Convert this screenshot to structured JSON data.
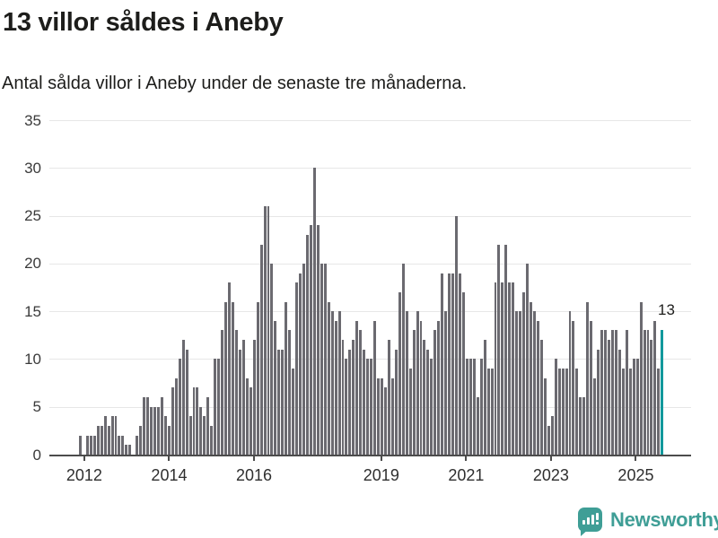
{
  "header": {
    "title": "13 villor såldes i Aneby",
    "subtitle": "Antal sålda villor i Aneby under de senaste tre månaderna."
  },
  "chart_data": {
    "type": "bar",
    "title": "13 villor såldes i Aneby",
    "subtitle": "Antal sålda villor i Aneby under de senaste tre månaderna.",
    "xlabel": "",
    "ylabel": "",
    "ylim": [
      0,
      35
    ],
    "yticks": [
      0,
      5,
      10,
      15,
      20,
      25,
      30,
      35
    ],
    "grid": true,
    "legend": "none",
    "x_start": "2011-12",
    "x_end": "2025-08",
    "x_unit": "month",
    "values": [
      2,
      0,
      2,
      2,
      2,
      3,
      3,
      4,
      3,
      4,
      4,
      2,
      2,
      1,
      1,
      0,
      2,
      3,
      6,
      6,
      5,
      5,
      5,
      6,
      4,
      3,
      7,
      8,
      10,
      12,
      11,
      4,
      7,
      7,
      5,
      4,
      6,
      3,
      10,
      10,
      13,
      16,
      18,
      16,
      13,
      11,
      12,
      8,
      7,
      12,
      16,
      22,
      26,
      26,
      20,
      14,
      11,
      11,
      16,
      13,
      9,
      18,
      19,
      20,
      23,
      24,
      30,
      24,
      20,
      20,
      16,
      15,
      14,
      15,
      12,
      10,
      11,
      12,
      14,
      13,
      11,
      10,
      10,
      14,
      8,
      8,
      7,
      12,
      8,
      11,
      17,
      20,
      15,
      9,
      13,
      15,
      14,
      12,
      11,
      10,
      13,
      14,
      19,
      15,
      19,
      19,
      25,
      19,
      17,
      10,
      10,
      10,
      6,
      10,
      12,
      9,
      9,
      18,
      22,
      18,
      22,
      18,
      18,
      15,
      15,
      17,
      20,
      16,
      15,
      14,
      12,
      8,
      3,
      4,
      10,
      9,
      9,
      9,
      15,
      14,
      9,
      6,
      6,
      16,
      14,
      8,
      11,
      13,
      13,
      12,
      13,
      13,
      11,
      9,
      13,
      9,
      10,
      10,
      16,
      13,
      13,
      12,
      14,
      9,
      13
    ],
    "xticks": [
      {
        "label": "2012",
        "month_index": 1
      },
      {
        "label": "2014",
        "month_index": 25
      },
      {
        "label": "2016",
        "month_index": 49
      },
      {
        "label": "2019",
        "month_index": 85
      },
      {
        "label": "2021",
        "month_index": 109
      },
      {
        "label": "2023",
        "month_index": 133
      },
      {
        "label": "2025",
        "month_index": 157
      }
    ],
    "highlight_last_bar": true,
    "annotation": "13",
    "colors": {
      "bar": "#6b6a70",
      "highlight": "#12999c",
      "grid": "#e7e7e7",
      "axis": "#4c4c4c"
    }
  },
  "footer": {
    "brand": "Newsworthy",
    "brand_color": "#3f9e96"
  }
}
